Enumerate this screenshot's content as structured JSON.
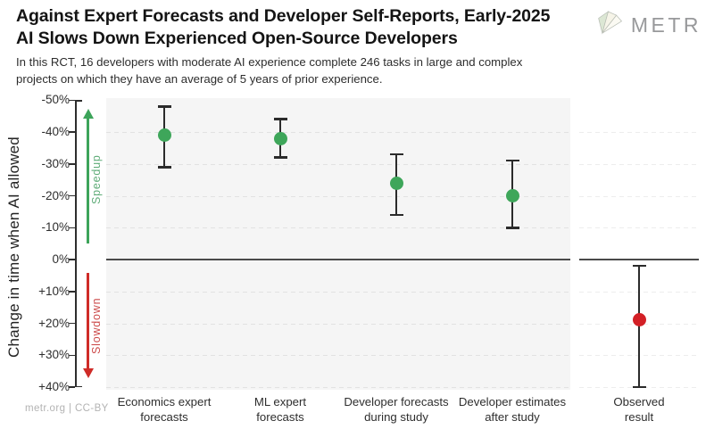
{
  "header": {
    "title_line1": "Against Expert Forecasts and Developer Self-Reports, Early-2025",
    "title_line2": "AI Slows Down Experienced Open-Source Developers",
    "subtitle_line1": "In this RCT, 16 developers with moderate AI experience complete 246 tasks in large and complex",
    "subtitle_line2": "projects on which they have an average of 5 years of prior experience.",
    "logo": {
      "text": "METR",
      "icon": "metr-prism-icon"
    }
  },
  "footer": {
    "credit": "metr.org | CC-BY"
  },
  "colors": {
    "dot_green": "#3EA65A",
    "dot_red": "#D32026",
    "speedup_green": "#3DA45A",
    "speedup_text": "#5FAC78",
    "slowdown_red": "#CF2B27",
    "slowdown_text": "#CC4A4A",
    "error_bar": "#2B2B2B",
    "zero_line": "#4A4A4A",
    "panel_bg": "#F5F5F5",
    "gridline": "#E2E2E2",
    "gridline_light": "#EDEDED",
    "axis_text": "#2E2E2E",
    "spine": "#2E2E2E",
    "logo_gray": "#98999B"
  },
  "chart_data": {
    "type": "scatter",
    "title": "Against Expert Forecasts and Developer Self-Reports, Early-2025 AI Slows Down Experienced Open-Source Developers",
    "subtitle": "In this RCT, 16 developers with moderate AI experience complete 246 tasks in large and complex projects on which they have an average of 5 years of prior experience.",
    "ylabel": "Change in time when AI allowed",
    "y_unit": "%",
    "ylim": [
      -50,
      40
    ],
    "y_axis_inverted_note": "negative (speedup) at top, positive (slowdown) at bottom",
    "y_ticks": [
      -50,
      -40,
      -30,
      -20,
      -10,
      0,
      10,
      20,
      30,
      40
    ],
    "y_tick_labels": [
      "-50%",
      "-40%",
      "-30%",
      "-20%",
      "-10%",
      "0%",
      "+10%",
      "+20%",
      "+30%",
      "+40%"
    ],
    "grid": "horizontal-dashed",
    "zero_reference_line": 0,
    "legend_position": "none",
    "annotations": {
      "speedup": {
        "label": "Speedup",
        "direction": "up",
        "color": "#3DA45A"
      },
      "slowdown": {
        "label": "Slowdown",
        "direction": "down",
        "color": "#CF2B27"
      }
    },
    "points": [
      {
        "category": "Economics expert forecasts",
        "category_lines": [
          "Economics expert",
          "forecasts"
        ],
        "value": -39,
        "ci": [
          -48,
          -29
        ],
        "color": "#3EA65A",
        "panel": "forecasts",
        "x_frac": 0.125
      },
      {
        "category": "ML expert forecasts",
        "category_lines": [
          "ML expert",
          "forecasts"
        ],
        "value": -38,
        "ci": [
          -44,
          -32
        ],
        "color": "#3EA65A",
        "panel": "forecasts",
        "x_frac": 0.375
      },
      {
        "category": "Developer forecasts during study",
        "category_lines": [
          "Developer forecasts",
          "during study"
        ],
        "value": -24,
        "ci": [
          -33,
          -14
        ],
        "color": "#3EA65A",
        "panel": "forecasts",
        "x_frac": 0.625
      },
      {
        "category": "Developer estimates after study",
        "category_lines": [
          "Developer estimates",
          "after study"
        ],
        "value": -20,
        "ci": [
          -31,
          -10
        ],
        "color": "#3EA65A",
        "panel": "forecasts",
        "x_frac": 0.875
      },
      {
        "category": "Observed result",
        "category_lines": [
          "Observed",
          "result"
        ],
        "value": 19,
        "ci": [
          2,
          40
        ],
        "color": "#D32026",
        "panel": "observed",
        "x_frac": 0.5
      }
    ]
  }
}
